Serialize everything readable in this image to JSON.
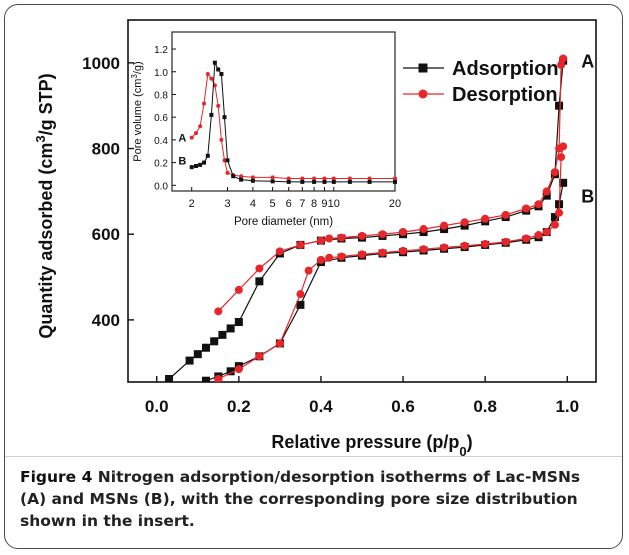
{
  "caption": {
    "label": "Figure 4",
    "text": "Nitrogen adsorption/desorption isotherms of Lac-MSNs (A) and MSNs (B), with the corresponding pore size distribution shown in the insert."
  },
  "colors": {
    "adsorption": "#111111",
    "desorption": "#e8262a",
    "frame": "#4a4a4a"
  },
  "chart_data": [
    {
      "id": "main",
      "type": "line",
      "xlabel": "Relative pressure (p/p0)",
      "ylabel": "Quantity adsorbed (cm3/g STP)",
      "xlim": [
        -0.07,
        1.07
      ],
      "ylim": [
        255,
        1100
      ],
      "xticks": [
        0.0,
        0.2,
        0.4,
        0.6,
        0.8,
        1.0
      ],
      "xtick_labels": [
        "0.0",
        "0.2",
        "0.4",
        "0.6",
        "0.8",
        "1.0"
      ],
      "yticks": [
        400,
        600,
        800,
        1000
      ],
      "ytick_labels": [
        "400",
        "600",
        "800",
        "1000"
      ],
      "legend": {
        "position": "top-right",
        "entries": [
          "Adsorption",
          "Desorption"
        ]
      },
      "curve_labels": [
        {
          "text": "A",
          "x": 1.05,
          "y": 1005
        },
        {
          "text": "B",
          "x": 1.05,
          "y": 690
        }
      ],
      "series": [
        {
          "name": "Adsorption",
          "curve": "A",
          "marker": "square",
          "x": [
            0.03,
            0.08,
            0.1,
            0.12,
            0.14,
            0.16,
            0.18,
            0.2,
            0.25,
            0.3,
            0.35,
            0.4,
            0.45,
            0.5,
            0.55,
            0.6,
            0.65,
            0.7,
            0.75,
            0.8,
            0.85,
            0.9,
            0.93,
            0.95,
            0.97,
            0.98,
            0.99
          ],
          "y": [
            262,
            305,
            320,
            335,
            350,
            365,
            380,
            395,
            490,
            555,
            575,
            585,
            590,
            592,
            596,
            600,
            605,
            612,
            620,
            630,
            640,
            655,
            665,
            690,
            740,
            900,
            1005
          ]
        },
        {
          "name": "Desorption",
          "curve": "A",
          "marker": "circle",
          "x": [
            0.99,
            0.985,
            0.98,
            0.97,
            0.95,
            0.93,
            0.9,
            0.85,
            0.8,
            0.75,
            0.7,
            0.65,
            0.6,
            0.55,
            0.5,
            0.45,
            0.42,
            0.4,
            0.35,
            0.3,
            0.25,
            0.2,
            0.15
          ],
          "y": [
            1010,
            995,
            800,
            745,
            700,
            670,
            660,
            645,
            636,
            628,
            620,
            612,
            605,
            600,
            596,
            592,
            590,
            585,
            575,
            560,
            520,
            470,
            420
          ]
        },
        {
          "name": "Adsorption",
          "curve": "B",
          "marker": "square",
          "x": [
            0.12,
            0.15,
            0.18,
            0.2,
            0.25,
            0.3,
            0.35,
            0.4,
            0.45,
            0.5,
            0.55,
            0.6,
            0.65,
            0.7,
            0.75,
            0.8,
            0.85,
            0.9,
            0.93,
            0.95,
            0.97,
            0.98,
            0.99
          ],
          "y": [
            258,
            268,
            280,
            292,
            315,
            345,
            435,
            535,
            545,
            550,
            555,
            558,
            562,
            566,
            570,
            575,
            580,
            587,
            593,
            605,
            640,
            670,
            720
          ]
        },
        {
          "name": "Desorption",
          "curve": "B",
          "marker": "circle",
          "x": [
            0.99,
            0.985,
            0.98,
            0.97,
            0.95,
            0.93,
            0.9,
            0.85,
            0.8,
            0.75,
            0.7,
            0.65,
            0.6,
            0.55,
            0.5,
            0.45,
            0.42,
            0.4,
            0.37,
            0.35,
            0.3,
            0.25,
            0.2,
            0.15
          ],
          "y": [
            805,
            780,
            650,
            622,
            605,
            598,
            590,
            582,
            577,
            573,
            569,
            565,
            561,
            557,
            553,
            548,
            545,
            540,
            515,
            460,
            345,
            315,
            285,
            262
          ]
        }
      ]
    },
    {
      "id": "inset",
      "type": "line",
      "xlabel": "Pore diameter (nm)",
      "ylabel": "Pore volume (cm3/g)",
      "xscale": "log",
      "xlim": [
        1.6,
        20
      ],
      "ylim": [
        -0.05,
        1.35
      ],
      "xticks": [
        2,
        3,
        4,
        5,
        6,
        7,
        8,
        9,
        10,
        20
      ],
      "xtick_labels": [
        "2",
        "3",
        "4",
        "5",
        "6",
        "7",
        "8",
        "9",
        "10",
        "20"
      ],
      "yticks": [
        0.0,
        0.2,
        0.4,
        0.6,
        0.8,
        1.0,
        1.2
      ],
      "ytick_labels": [
        "0.0",
        "0.2",
        "0.4",
        "0.6",
        "0.8",
        "1.0",
        "1.2"
      ],
      "curve_labels": [
        {
          "text": "A",
          "x": 1.8,
          "y": 0.42
        },
        {
          "text": "B",
          "x": 1.8,
          "y": 0.22
        }
      ],
      "series": [
        {
          "name": "A",
          "marker": "circle",
          "x": [
            2.0,
            2.1,
            2.2,
            2.3,
            2.4,
            2.5,
            2.6,
            2.7,
            2.8,
            2.9,
            3.0,
            3.2,
            3.5,
            4,
            5,
            6,
            7,
            8,
            9,
            10,
            12,
            15,
            20
          ],
          "y": [
            0.42,
            0.46,
            0.52,
            0.72,
            0.98,
            0.94,
            0.88,
            0.7,
            0.4,
            0.22,
            0.11,
            0.09,
            0.08,
            0.07,
            0.07,
            0.06,
            0.06,
            0.06,
            0.06,
            0.06,
            0.06,
            0.06,
            0.06
          ]
        },
        {
          "name": "B",
          "marker": "square",
          "x": [
            2.0,
            2.1,
            2.2,
            2.3,
            2.4,
            2.5,
            2.6,
            2.7,
            2.8,
            2.9,
            3.0,
            3.2,
            3.5,
            4,
            5,
            6,
            7,
            8,
            9,
            10,
            12,
            15,
            20
          ],
          "y": [
            0.16,
            0.17,
            0.18,
            0.2,
            0.26,
            0.62,
            1.08,
            1.02,
            0.98,
            0.6,
            0.22,
            0.08,
            0.05,
            0.04,
            0.035,
            0.03,
            0.03,
            0.03,
            0.03,
            0.03,
            0.03,
            0.03,
            0.03
          ]
        }
      ]
    }
  ]
}
